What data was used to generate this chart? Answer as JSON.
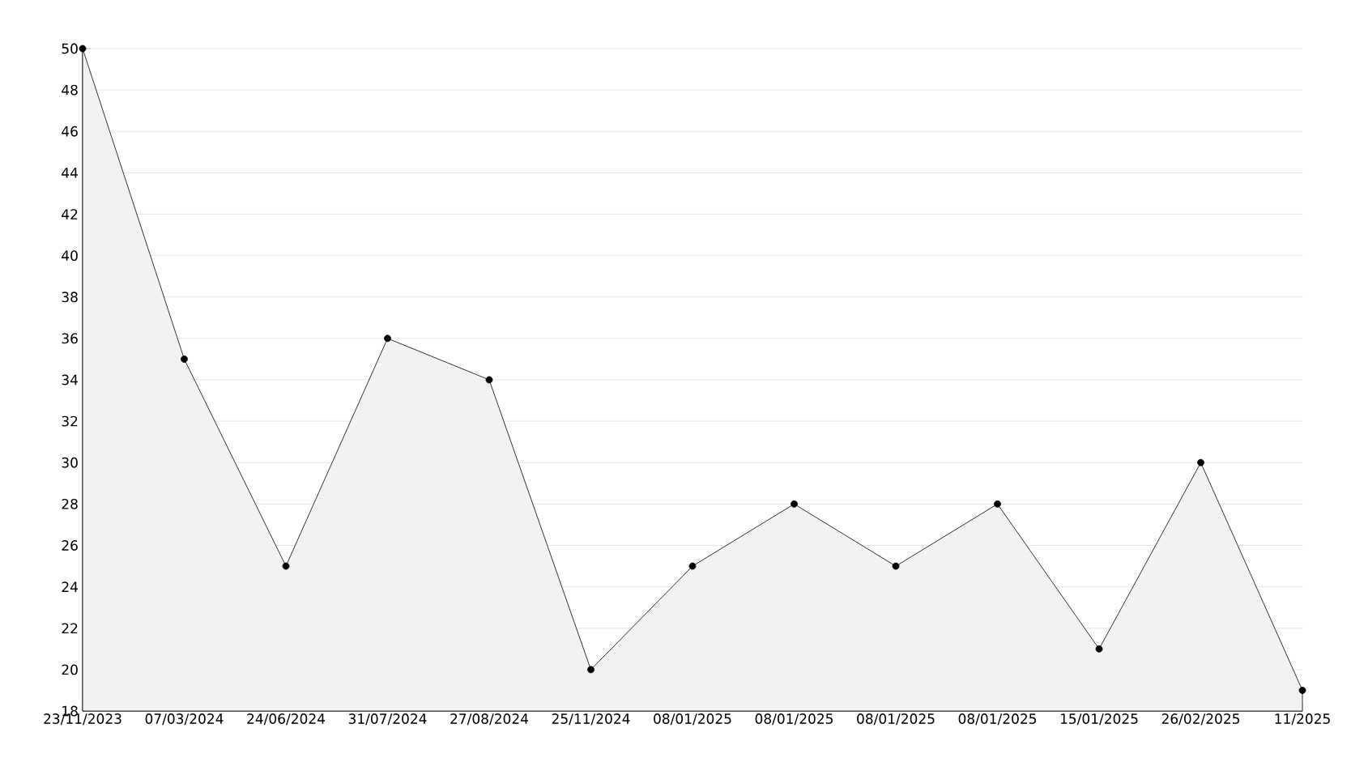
{
  "chart_data": {
    "type": "area",
    "categories": [
      "23/11/2023",
      "07/03/2024",
      "24/06/2024",
      "31/07/2024",
      "27/08/2024",
      "25/11/2024",
      "08/01/2025",
      "08/01/2025",
      "08/01/2025",
      "08/01/2025",
      "15/01/2025",
      "26/02/2025",
      "11/2025"
    ],
    "series": [
      {
        "color": "#000000",
        "values": [
          50,
          35,
          25,
          36,
          34,
          20,
          25,
          28,
          25,
          28,
          21,
          30,
          19
        ]
      }
    ],
    "ylim": [
      18,
      50
    ],
    "yticks": [
      18,
      20,
      22,
      24,
      26,
      28,
      30,
      32,
      34,
      36,
      38,
      40,
      42,
      44,
      46,
      48,
      50
    ],
    "grid": "y",
    "marker": "circle",
    "line_style": "solid"
  }
}
